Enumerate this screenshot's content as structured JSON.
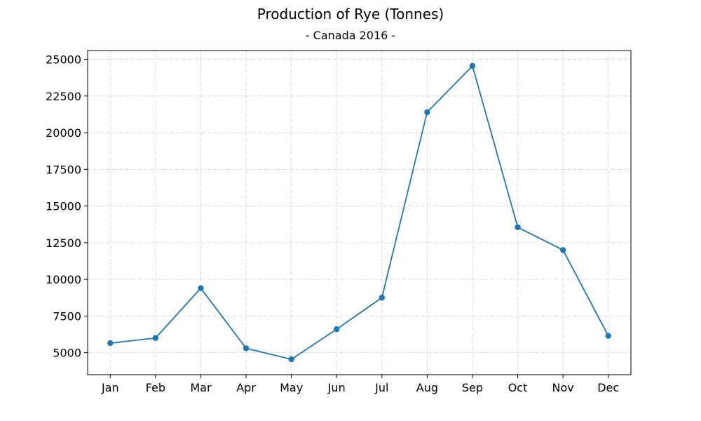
{
  "chart_data": {
    "type": "line",
    "title": "Production of Rye (Tonnes)",
    "subtitle": "- Canada 2016 -",
    "xlabel": "",
    "ylabel": "",
    "categories": [
      "Jan",
      "Feb",
      "Mar",
      "Apr",
      "May",
      "Jun",
      "Jul",
      "Aug",
      "Sep",
      "Oct",
      "Nov",
      "Dec"
    ],
    "series": [
      {
        "values": [
          5650,
          6000,
          9400,
          5300,
          4550,
          6600,
          8750,
          21400,
          24550,
          13550,
          12000,
          6150
        ]
      }
    ],
    "ylim": [
      3500,
      25600
    ],
    "yticks": [
      5000,
      7500,
      10000,
      12500,
      15000,
      17500,
      20000,
      22500,
      25000
    ],
    "grid": true,
    "line_color": "#1f77b4",
    "grid_color": "#cccccc"
  }
}
